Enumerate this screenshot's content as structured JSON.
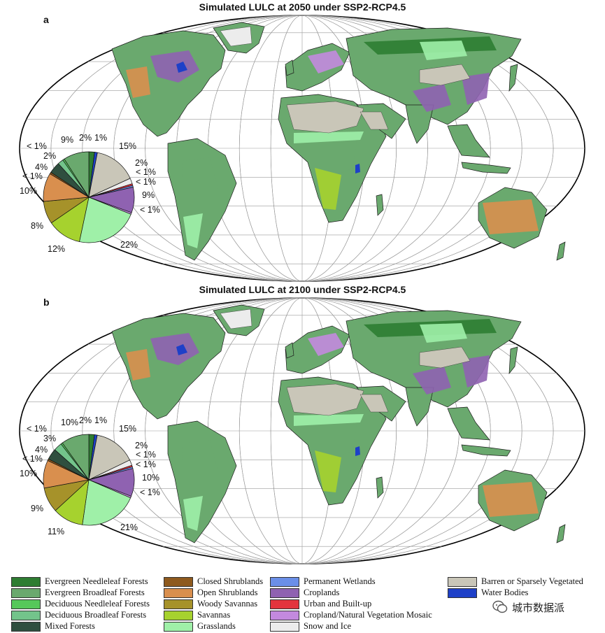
{
  "colors": {
    "evergreen_needleleaf": "#2e7d32",
    "evergreen_broadleaf": "#6aa96e",
    "deciduous_needleleaf": "#56c85a",
    "deciduous_broadleaf": "#73c48b",
    "mixed_forests": "#2f4f3f",
    "closed_shrublands": "#8e5a1e",
    "open_shrublands": "#d98f4e",
    "woody_savannas": "#a6922a",
    "savannas": "#a6d22e",
    "grasslands": "#9ff0a8",
    "permanent_wetlands": "#6b8fe8",
    "croplands": "#8f62b1",
    "urban": "#e3343d",
    "cropland_mosaic": "#c389de",
    "snow_ice": "#ececec",
    "barren": "#c9c6b8",
    "water": "#1e40c8",
    "ocean": "#ffffff"
  },
  "panel_a": {
    "letter": "a",
    "title": "Simulated LULC at 2050 under SSP2-RCP4.5",
    "pie_labels": [
      "2%",
      "1%",
      "15%",
      "2%",
      "< 1%",
      "< 1%",
      "9%",
      "< 1%",
      "22%",
      "12%",
      "8%",
      "10%",
      "< 1%",
      "4%",
      "2%",
      "< 1%",
      "9%"
    ]
  },
  "panel_b": {
    "letter": "b",
    "title": "Simulated LULC at 2100 under SSP2-RCP4.5",
    "pie_labels": [
      "2%",
      "1%",
      "15%",
      "2%",
      "< 1%",
      "< 1%",
      "10%",
      "< 1%",
      "21%",
      "11%",
      "9%",
      "10%",
      "< 1%",
      "4%",
      "3%",
      "< 1%",
      "10%"
    ]
  },
  "legend": [
    {
      "label": "Evergreen Needleleaf Forests",
      "color": "#2e7d32"
    },
    {
      "label": "Evergreen Broadleaf Forests",
      "color": "#6aa96e"
    },
    {
      "label": "Deciduous Needleleaf Forests",
      "color": "#56c85a"
    },
    {
      "label": "Deciduous Broadleaf Forests",
      "color": "#73c48b"
    },
    {
      "label": "Mixed Forests",
      "color": "#2f4f3f"
    },
    {
      "label": "Closed Shrublands",
      "color": "#8e5a1e"
    },
    {
      "label": "Open Shrublands",
      "color": "#d98f4e"
    },
    {
      "label": "Woody Savannas",
      "color": "#a6922a"
    },
    {
      "label": "Savannas",
      "color": "#a6d22e"
    },
    {
      "label": "Grasslands",
      "color": "#9ff0a8"
    },
    {
      "label": "Permanent Wetlands",
      "color": "#6b8fe8"
    },
    {
      "label": "Croplands",
      "color": "#8f62b1"
    },
    {
      "label": "Urban and Built-up",
      "color": "#e3343d"
    },
    {
      "label": "Cropland/Natural Vegetation Mosaic",
      "color": "#c389de"
    },
    {
      "label": "Snow and Ice",
      "color": "#ececec"
    },
    {
      "label": "Barren or Sparsely Vegetated",
      "color": "#c9c6b8"
    },
    {
      "label": "Water Bodies",
      "color": "#1e40c8"
    }
  ],
  "watermark": {
    "text": "城市数据派",
    "icon": "wechat-icon"
  }
}
